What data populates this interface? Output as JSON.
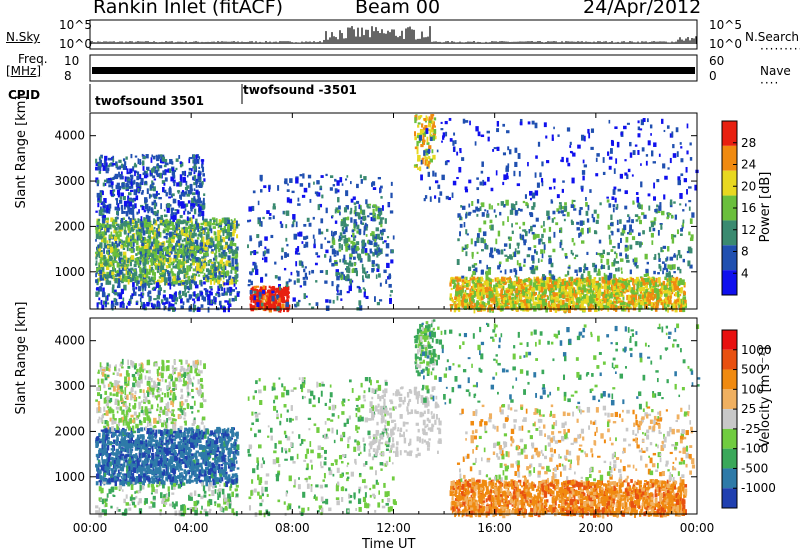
{
  "header": {
    "station": "Rankin Inlet (fitACF)",
    "beam": "Beam 00",
    "date": "24/Apr/2012"
  },
  "strip": {
    "nsky_label": "N.Sky",
    "nsearch_label": "N.Search",
    "nsky_ticks": [
      "10^5",
      "10^0"
    ],
    "nsearch_ticks": [
      "10^5",
      "10^0"
    ],
    "freq_label": "Freq.",
    "freq_unit": "[MHz]",
    "freq_ticks": [
      "10",
      "8"
    ],
    "nave_label": "Nave",
    "nave_ticks": [
      "60",
      "0"
    ],
    "cpid_label": "CPID",
    "cpid_segments": [
      "twofsound 3501",
      "twofsound -3501"
    ]
  },
  "chart_data": [
    {
      "type": "heatmap",
      "name": "power",
      "ylabel": "Slant Range [km]",
      "ylim": [
        180,
        4500
      ],
      "yticks": [
        "4000",
        "3000",
        "2000",
        "1000"
      ],
      "colorbar_label": "Power [dB]",
      "colorbar_ticks": [
        "28",
        "24",
        "20",
        "16",
        "12",
        "8",
        "4"
      ],
      "colors": [
        "#1010ee",
        "#2050b0",
        "#3a8a70",
        "#6abf3c",
        "#e8d820",
        "#f08a10",
        "#e82010"
      ]
    },
    {
      "type": "heatmap",
      "name": "velocity",
      "ylabel": "Slant Range [km]",
      "ylim": [
        180,
        4500
      ],
      "yticks": [
        "4000",
        "3000",
        "2000",
        "1000"
      ],
      "colorbar_label": "Velocity [m s⁻¹]",
      "colorbar_ticks": [
        "1000",
        "500",
        "100",
        "25",
        "-25",
        "-100",
        "-500",
        "-1000"
      ],
      "colors": [
        "#2040b0",
        "#2e7aa8",
        "#3aa85a",
        "#70cc40",
        "#c8c8c8",
        "#f0b060",
        "#f08a10",
        "#e85010",
        "#e81010"
      ]
    }
  ],
  "xaxis": {
    "xlabel": "Time UT",
    "xticks": [
      "00:00",
      "04:00",
      "08:00",
      "12:00",
      "16:00",
      "20:00",
      "00:00"
    ],
    "xlim_hours": [
      0,
      24
    ]
  }
}
